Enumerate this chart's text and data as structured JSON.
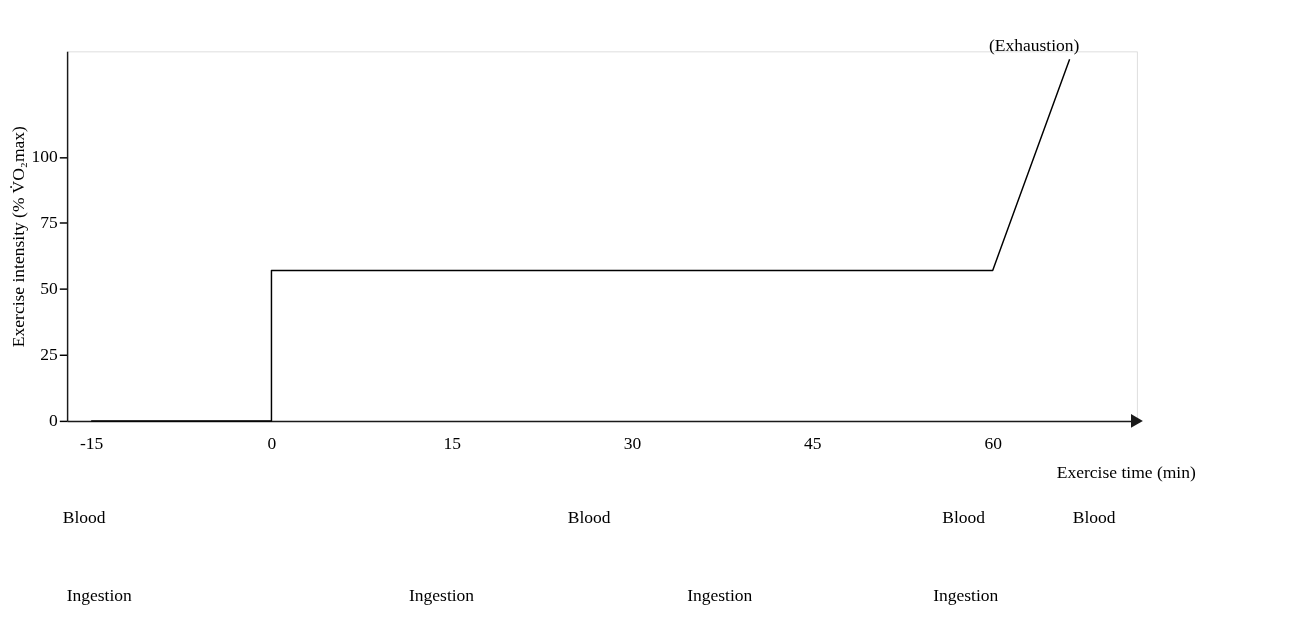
{
  "chart_data": {
    "type": "line",
    "xlabel": "Exercise time (min)",
    "ylabel": "Exercise intensity (% V̇O₂max)",
    "x": [
      -15,
      0,
      0,
      60,
      66.4
    ],
    "series": [
      {
        "color": "#000000",
        "values": [
          0,
          0,
          57,
          57,
          137
        ]
      }
    ],
    "xlim": [
      -17,
      72
    ],
    "xticks": [
      -15,
      0,
      15,
      30,
      45,
      60
    ],
    "ylim": [
      0,
      140
    ],
    "yticks": [
      0,
      25,
      50,
      75,
      100
    ],
    "grid": false,
    "marker": "none",
    "line_style": "solid",
    "annotations": [
      {
        "text": "(Exhaustion)",
        "x": 66.4,
        "y": 137
      },
      "Blood",
      "Blood",
      "Blood",
      "Blood",
      "Ingestion",
      "Ingestion",
      "Ingestion",
      "Ingestion"
    ]
  }
}
